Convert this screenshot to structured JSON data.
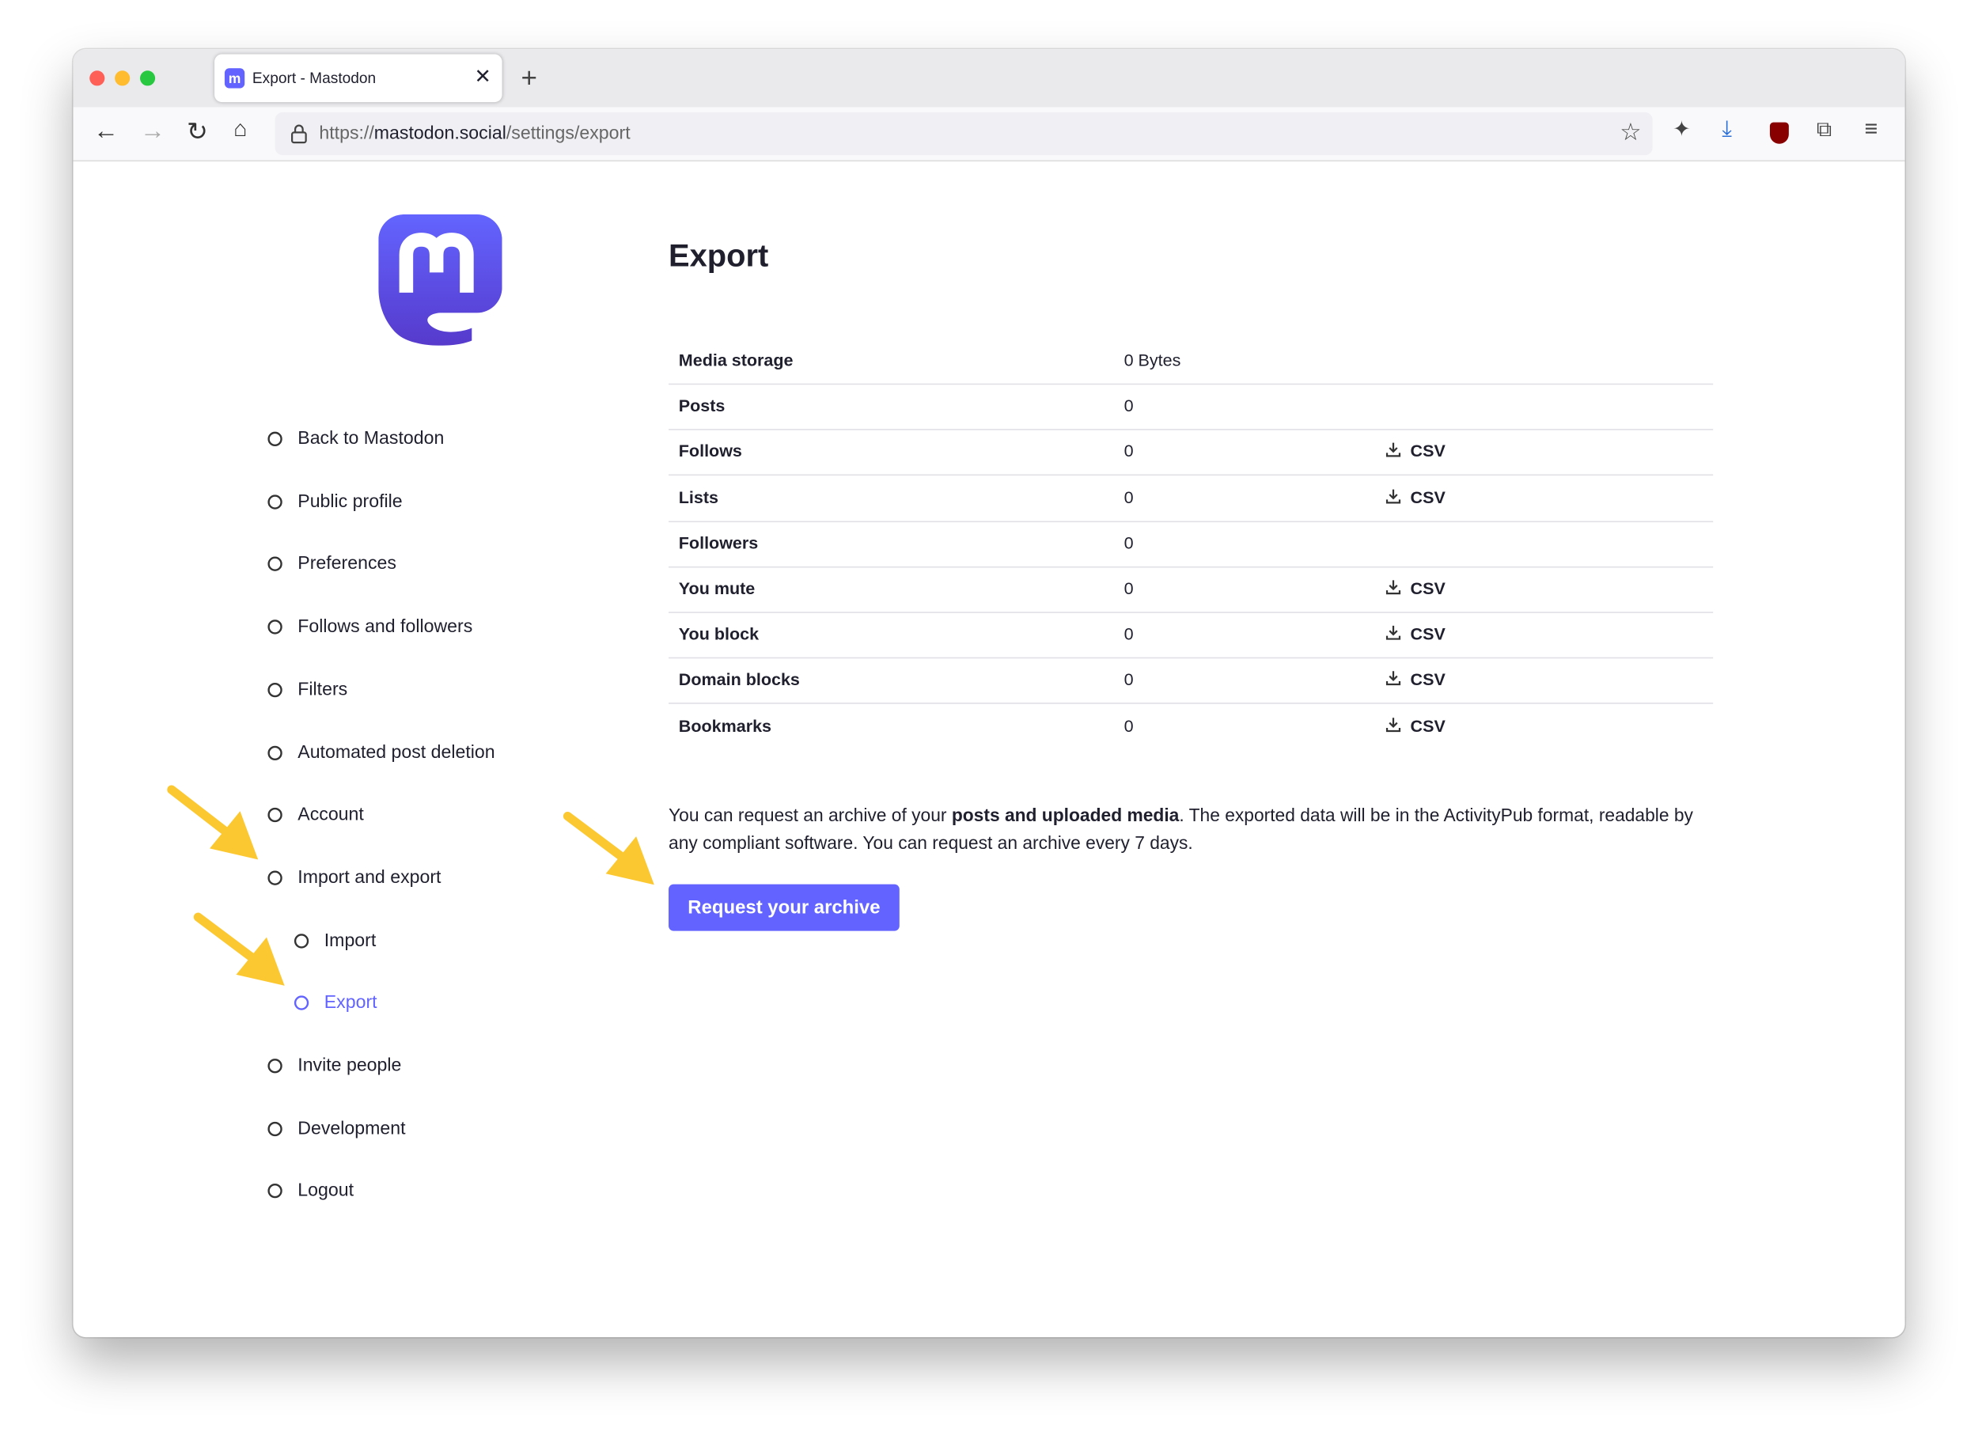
{
  "browser": {
    "tab_title": "Export - Mastodon",
    "url": {
      "scheme": "https://",
      "host": "mastodon.social",
      "path": "/settings/export"
    }
  },
  "sidebar": {
    "items": [
      "Back to Mastodon",
      "Public profile",
      "Preferences",
      "Follows and followers",
      "Filters",
      "Automated post deletion",
      "Account",
      "Import and export"
    ],
    "subitems": [
      "Import",
      "Export"
    ],
    "bottom_items": [
      "Invite people",
      "Development",
      "Logout"
    ]
  },
  "main": {
    "title": "Export",
    "table": {
      "rows": [
        {
          "label": "Media storage",
          "count": "0 Bytes"
        },
        {
          "label": "Posts",
          "count": "0"
        },
        {
          "label": "Follows",
          "count": "0",
          "download": "CSV"
        },
        {
          "label": "Lists",
          "count": "0",
          "download": "CSV"
        },
        {
          "label": "Followers",
          "count": "0"
        },
        {
          "label": "You mute",
          "count": "0",
          "download": "CSV"
        },
        {
          "label": "You block",
          "count": "0",
          "download": "CSV"
        },
        {
          "label": "Domain blocks",
          "count": "0",
          "download": "CSV"
        },
        {
          "label": "Bookmarks",
          "count": "0",
          "download": "CSV"
        }
      ]
    },
    "paragraph": {
      "before": "You can request an archive of your ",
      "bold": "posts and uploaded media",
      "after": ". The exported data will be in the ActivityPub format, readable by any compliant software. You can request an archive every 7 days."
    },
    "button": "Request your archive"
  }
}
